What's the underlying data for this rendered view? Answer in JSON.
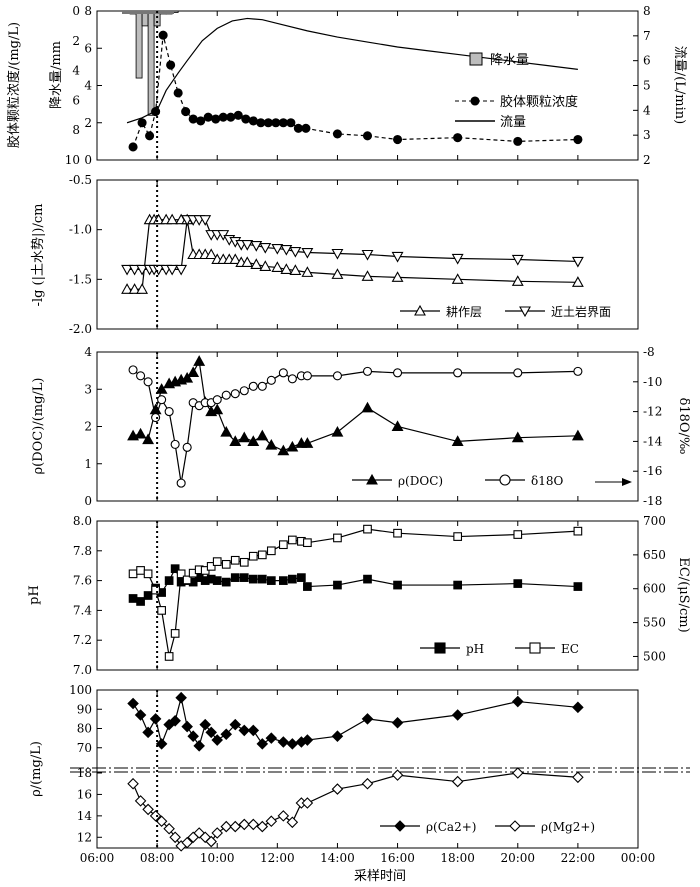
{
  "x_axis": {
    "label": "采样时间",
    "ticks": [
      "06:00",
      "08:00",
      "10:00",
      "12:00",
      "14:00",
      "16:00",
      "18:00",
      "20:00",
      "22:00",
      "00:00"
    ],
    "range_hours": [
      6,
      24
    ]
  },
  "rain_start_marker_hour": 8.0,
  "chart_data": [
    {
      "type": "line",
      "panel": 1,
      "ylabel": "胶体颗粒浓度/(mg/L)",
      "ylim": [
        0,
        8
      ],
      "yticks": [
        0,
        2,
        4,
        6,
        8
      ],
      "ylabel2": "降水量/mm",
      "y2lim_inverted": [
        0,
        10
      ],
      "y2ticks": [
        0,
        2,
        4,
        6,
        8,
        10
      ],
      "ylabel3": "流量/(L/min)",
      "y3lim": [
        2,
        8
      ],
      "y3ticks": [
        2,
        3,
        4,
        5,
        6,
        7,
        8
      ],
      "legend": {
        "rain": "降水量",
        "colloid": "胶体颗粒浓度",
        "flow": "流量"
      },
      "rain": {
        "name": "降水量",
        "x": [
          7.2,
          7.4,
          7.6,
          7.8,
          8.0,
          8.2,
          8.4,
          8.6
        ],
        "values": [
          0.2,
          4.5,
          1.0,
          7.0,
          1.0,
          0.2,
          0.2,
          0.1
        ]
      },
      "colloid": {
        "name": "胶体颗粒浓度",
        "x": [
          7.2,
          7.5,
          7.75,
          7.95,
          8.2,
          8.45,
          8.7,
          8.95,
          9.2,
          9.45,
          9.7,
          9.95,
          10.2,
          10.45,
          10.7,
          10.95,
          11.2,
          11.45,
          11.7,
          11.95,
          12.2,
          12.45,
          12.7,
          12.95,
          14.0,
          15.0,
          16.0,
          18.0,
          20.0,
          22.0
        ],
        "values": [
          0.7,
          2.0,
          1.3,
          2.6,
          6.7,
          5.1,
          3.6,
          2.6,
          2.2,
          2.1,
          2.3,
          2.2,
          2.3,
          2.3,
          2.4,
          2.2,
          2.1,
          2.0,
          2.0,
          2.0,
          2.0,
          2.0,
          1.7,
          1.7,
          1.4,
          1.3,
          1.1,
          1.2,
          1.0,
          1.1
        ]
      },
      "flow": {
        "name": "流量",
        "x": [
          7.0,
          7.5,
          8.0,
          8.3,
          8.7,
          9.0,
          9.5,
          10.0,
          10.5,
          11.0,
          11.5,
          12.0,
          13.0,
          14.0,
          15.0,
          16.0,
          17.0,
          18.0,
          19.0,
          20.0,
          21.0,
          22.0
        ],
        "values": [
          3.5,
          3.7,
          4.0,
          4.8,
          5.5,
          6.0,
          6.8,
          7.3,
          7.6,
          7.7,
          7.65,
          7.5,
          7.2,
          6.95,
          6.75,
          6.55,
          6.4,
          6.25,
          6.1,
          5.95,
          5.8,
          5.65
        ]
      }
    },
    {
      "type": "line",
      "panel": 2,
      "ylabel": "-lg (|土水势|)/cm",
      "ylim": [
        -2.0,
        -0.5
      ],
      "yticks": [
        "-0.5",
        "-1.0",
        "-1.5",
        "-2.0"
      ],
      "series": [
        {
          "name": "耕作层",
          "x": [
            7.0,
            7.25,
            7.5,
            7.75,
            7.9,
            8.05,
            8.3,
            8.5,
            8.8,
            9.0,
            9.2,
            9.4,
            9.6,
            9.8,
            10.0,
            10.2,
            10.4,
            10.6,
            10.8,
            11.0,
            11.3,
            11.6,
            12.0,
            12.3,
            12.6,
            13.0,
            14.0,
            15.0,
            16.0,
            18.0,
            20.0,
            22.0
          ],
          "values": [
            -1.6,
            -1.6,
            -1.6,
            -0.9,
            -0.9,
            -0.9,
            -0.9,
            -0.9,
            -0.9,
            -0.9,
            -1.25,
            -1.25,
            -1.25,
            -1.25,
            -1.3,
            -1.3,
            -1.3,
            -1.3,
            -1.33,
            -1.33,
            -1.35,
            -1.37,
            -1.38,
            -1.4,
            -1.41,
            -1.43,
            -1.45,
            -1.47,
            -1.48,
            -1.5,
            -1.52,
            -1.53
          ]
        },
        {
          "name": "近土岩界面",
          "x": [
            7.0,
            7.25,
            7.5,
            7.75,
            7.9,
            8.05,
            8.3,
            8.5,
            8.8,
            9.0,
            9.2,
            9.4,
            9.6,
            9.8,
            10.0,
            10.2,
            10.4,
            10.6,
            10.8,
            11.0,
            11.3,
            11.6,
            12.0,
            12.3,
            12.6,
            13.0,
            14.0,
            15.0,
            16.0,
            18.0,
            20.0,
            22.0
          ],
          "values": [
            -1.4,
            -1.4,
            -1.4,
            -1.4,
            -1.4,
            -1.4,
            -1.4,
            -1.4,
            -1.4,
            -0.9,
            -0.9,
            -0.9,
            -0.9,
            -1.05,
            -1.05,
            -1.05,
            -1.1,
            -1.12,
            -1.15,
            -1.15,
            -1.16,
            -1.18,
            -1.19,
            -1.2,
            -1.22,
            -1.23,
            -1.24,
            -1.25,
            -1.27,
            -1.29,
            -1.3,
            -1.32
          ]
        }
      ]
    },
    {
      "type": "line",
      "panel": 3,
      "ylabel": "ρ(DOC)/(mg/L)",
      "ylim": [
        0,
        4
      ],
      "yticks": [
        0,
        1,
        2,
        3,
        4
      ],
      "ylabel2": "δ18O/‰",
      "y2lim": [
        -18,
        -8
      ],
      "y2ticks": [
        -8,
        -10,
        -12,
        -14,
        -16,
        -18
      ],
      "series": [
        {
          "name": "ρ(DOC)",
          "x": [
            7.2,
            7.45,
            7.7,
            7.95,
            8.15,
            8.4,
            8.6,
            8.8,
            9.0,
            9.2,
            9.4,
            9.6,
            9.8,
            10.0,
            10.3,
            10.6,
            10.9,
            11.2,
            11.5,
            11.8,
            12.2,
            12.5,
            12.8,
            13.0,
            14.0,
            15.0,
            16.0,
            18.0,
            20.0,
            22.0
          ],
          "values": [
            1.75,
            1.8,
            1.65,
            2.45,
            3.0,
            3.15,
            3.2,
            3.25,
            3.3,
            3.45,
            3.75,
            2.65,
            2.4,
            2.45,
            1.85,
            1.6,
            1.7,
            1.6,
            1.75,
            1.5,
            1.35,
            1.45,
            1.55,
            1.55,
            1.85,
            2.5,
            2.0,
            1.6,
            1.7,
            1.75
          ]
        },
        {
          "name": "δ18O",
          "x": [
            7.2,
            7.45,
            7.7,
            7.95,
            8.15,
            8.4,
            8.6,
            8.8,
            9.0,
            9.2,
            9.4,
            9.6,
            9.8,
            10.0,
            10.3,
            10.6,
            10.9,
            11.2,
            11.5,
            11.8,
            12.2,
            12.5,
            12.8,
            13.0,
            14.0,
            15.0,
            16.0,
            18.0,
            20.0,
            22.0
          ],
          "values": [
            -9.2,
            -9.6,
            -10.0,
            -12.4,
            -11.2,
            -12.0,
            -14.2,
            -16.8,
            -14.4,
            -11.4,
            -11.6,
            -11.4,
            -11.4,
            -11.2,
            -10.9,
            -10.8,
            -10.6,
            -10.3,
            -10.3,
            -9.9,
            -9.4,
            -9.8,
            -9.6,
            -9.6,
            -9.6,
            -9.3,
            -9.4,
            -9.4,
            -9.4,
            -9.3
          ]
        }
      ]
    },
    {
      "type": "line",
      "panel": 4,
      "ylabel": "pH",
      "ylim": [
        7.0,
        8.0
      ],
      "yticks": [
        "7.0",
        "7.2",
        "7.4",
        "7.6",
        "7.8",
        "8.0"
      ],
      "ylabel2": "EC/(μS/cm)",
      "y2lim": [
        480,
        700
      ],
      "y2ticks": [
        500,
        550,
        600,
        650,
        700
      ],
      "series": [
        {
          "name": "pH",
          "x": [
            7.2,
            7.45,
            7.7,
            7.95,
            8.15,
            8.4,
            8.6,
            8.8,
            9.0,
            9.2,
            9.4,
            9.6,
            9.8,
            10.0,
            10.3,
            10.6,
            10.9,
            11.2,
            11.5,
            11.8,
            12.2,
            12.5,
            12.8,
            13.0,
            14.0,
            15.0,
            16.0,
            18.0,
            20.0,
            22.0
          ],
          "values": [
            7.48,
            7.46,
            7.5,
            7.55,
            7.52,
            7.6,
            7.68,
            7.59,
            7.6,
            7.59,
            7.62,
            7.6,
            7.61,
            7.6,
            7.59,
            7.62,
            7.62,
            7.61,
            7.61,
            7.6,
            7.6,
            7.61,
            7.62,
            7.56,
            7.57,
            7.61,
            7.57,
            7.57,
            7.58,
            7.56
          ]
        },
        {
          "name": "EC",
          "x": [
            7.2,
            7.45,
            7.7,
            7.95,
            8.15,
            8.4,
            8.6,
            8.8,
            9.0,
            9.2,
            9.4,
            9.6,
            9.8,
            10.0,
            10.3,
            10.6,
            10.9,
            11.2,
            11.5,
            11.8,
            12.2,
            12.5,
            12.8,
            13.0,
            14.0,
            15.0,
            16.0,
            18.0,
            20.0,
            22.0
          ],
          "values": [
            622,
            627,
            622,
            598,
            568,
            500,
            534,
            622,
            613,
            623,
            628,
            627,
            633,
            640,
            636,
            642,
            639,
            648,
            650,
            656,
            665,
            672,
            670,
            668,
            675,
            688,
            682,
            677,
            680,
            685
          ]
        }
      ]
    },
    {
      "type": "line",
      "panel": 5,
      "ylabel": "ρ/(mg/L)",
      "ylim": [
        60,
        100
      ],
      "yticks": [
        60,
        70,
        80,
        90,
        100
      ],
      "ylim_lower": [
        11,
        18
      ],
      "yticks_lower": [
        12,
        14,
        16,
        18
      ],
      "axis_break": true,
      "series": [
        {
          "name": "ρ(Ca2+)",
          "x": [
            7.2,
            7.45,
            7.7,
            7.95,
            8.15,
            8.4,
            8.6,
            8.8,
            9.0,
            9.2,
            9.4,
            9.6,
            9.8,
            10.0,
            10.3,
            10.6,
            10.9,
            11.2,
            11.5,
            11.8,
            12.2,
            12.5,
            12.8,
            13.0,
            14.0,
            15.0,
            16.0,
            18.0,
            20.0,
            22.0
          ],
          "values": [
            93,
            87,
            78,
            85,
            72,
            82,
            84,
            96,
            81,
            76,
            71,
            82,
            78,
            74,
            77,
            82,
            79,
            79,
            72,
            75,
            73,
            72,
            73,
            74,
            76,
            85,
            83,
            87,
            94,
            91
          ]
        },
        {
          "name": "ρ(Mg2+)",
          "x": [
            7.2,
            7.45,
            7.7,
            7.95,
            8.15,
            8.4,
            8.6,
            8.8,
            9.0,
            9.2,
            9.4,
            9.6,
            9.8,
            10.0,
            10.3,
            10.6,
            10.9,
            11.2,
            11.5,
            11.8,
            12.2,
            12.5,
            12.8,
            13.0,
            14.0,
            15.0,
            16.0,
            18.0,
            20.0,
            22.0
          ],
          "values": [
            17.0,
            15.4,
            14.6,
            14.0,
            13.5,
            12.8,
            12.0,
            11.2,
            11.5,
            12.0,
            12.4,
            12.0,
            11.6,
            12.4,
            13.0,
            13.0,
            13.2,
            13.2,
            13.0,
            13.5,
            14.0,
            13.4,
            15.2,
            15.2,
            16.5,
            17.0,
            17.8,
            17.2,
            18.0,
            17.6
          ]
        }
      ]
    }
  ]
}
